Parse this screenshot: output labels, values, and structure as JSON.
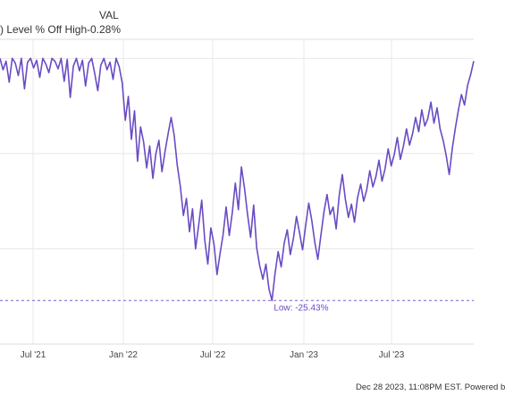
{
  "legend": {
    "header": "VAL",
    "label": ") Level % Off High",
    "value": "-0.28%"
  },
  "chart_data": {
    "type": "line",
    "title": "",
    "xlabel": "",
    "ylabel": "",
    "x_ticks": [
      "Jul '21",
      "Jan '22",
      "Jul '22",
      "Jan '23",
      "Jul '23"
    ],
    "ylim": [
      -30,
      2
    ],
    "grid": true,
    "line_color": "#6a4bc4",
    "series": [
      {
        "values": [
          0,
          -1.2,
          -0.3,
          -2.5,
          0,
          -0.5,
          -1.8,
          0,
          -3.2,
          -0.4,
          0,
          -1,
          -0.2,
          -2,
          0,
          -0.6,
          -1.5,
          0,
          -0.3,
          -1.1,
          0,
          -2.4,
          -0.1,
          -4.1,
          -0.8,
          0,
          -1.3,
          -0.2,
          -2.9,
          -0.5,
          0,
          -1.6,
          -3.4,
          -0.7,
          0,
          -1.2,
          -0.4,
          -2.2,
          0,
          -0.9,
          -2.6,
          -6.5,
          -4,
          -8.5,
          -5.5,
          -10.8,
          -7.2,
          -8.8,
          -11.5,
          -9.2,
          -12.6,
          -10,
          -8.6,
          -11.9,
          -9.8,
          -7.9,
          -6.2,
          -8.1,
          -11.2,
          -13.4,
          -16.5,
          -14.7,
          -18.2,
          -15.8,
          -20,
          -17.5,
          -14.9,
          -19.1,
          -21.6,
          -17.8,
          -19.5,
          -22.7,
          -20.5,
          -18.5,
          -15.6,
          -18.6,
          -16.2,
          -13.1,
          -15.9,
          -11.4,
          -13.6,
          -16.4,
          -18.8,
          -15.4,
          -19.9,
          -21.8,
          -23.2,
          -21.6,
          -24.2,
          -25.43,
          -22.6,
          -20.3,
          -21.9,
          -19.4,
          -18,
          -20.6,
          -18.9,
          -16.6,
          -18.3,
          -20.1,
          -17.6,
          -15.2,
          -17,
          -19.3,
          -21.1,
          -18.6,
          -16.1,
          -14.3,
          -16.4,
          -15.6,
          -17.9,
          -14.4,
          -12.2,
          -14.8,
          -16.7,
          -15.3,
          -17.2,
          -14.6,
          -13.2,
          -15,
          -13.8,
          -11.8,
          -13.5,
          -12.4,
          -10.7,
          -12.9,
          -11.6,
          -9.5,
          -11.3,
          -10.1,
          -8.3,
          -10.6,
          -9.2,
          -7.4,
          -9.1,
          -7.9,
          -6.2,
          -7.7,
          -5.4,
          -7.1,
          -6.3,
          -4.6,
          -6.8,
          -5.2,
          -7.4,
          -8.6,
          -10.2,
          -12.2,
          -9.4,
          -7.3,
          -5.4,
          -3.8,
          -4.9,
          -2.8,
          -1.7,
          -0.28
        ]
      }
    ],
    "low_annotation": {
      "text": "Low: -25.43%",
      "value": -25.43
    }
  },
  "footer": {
    "text": "Dec 28 2023, 11:08PM EST. Powered b"
  }
}
